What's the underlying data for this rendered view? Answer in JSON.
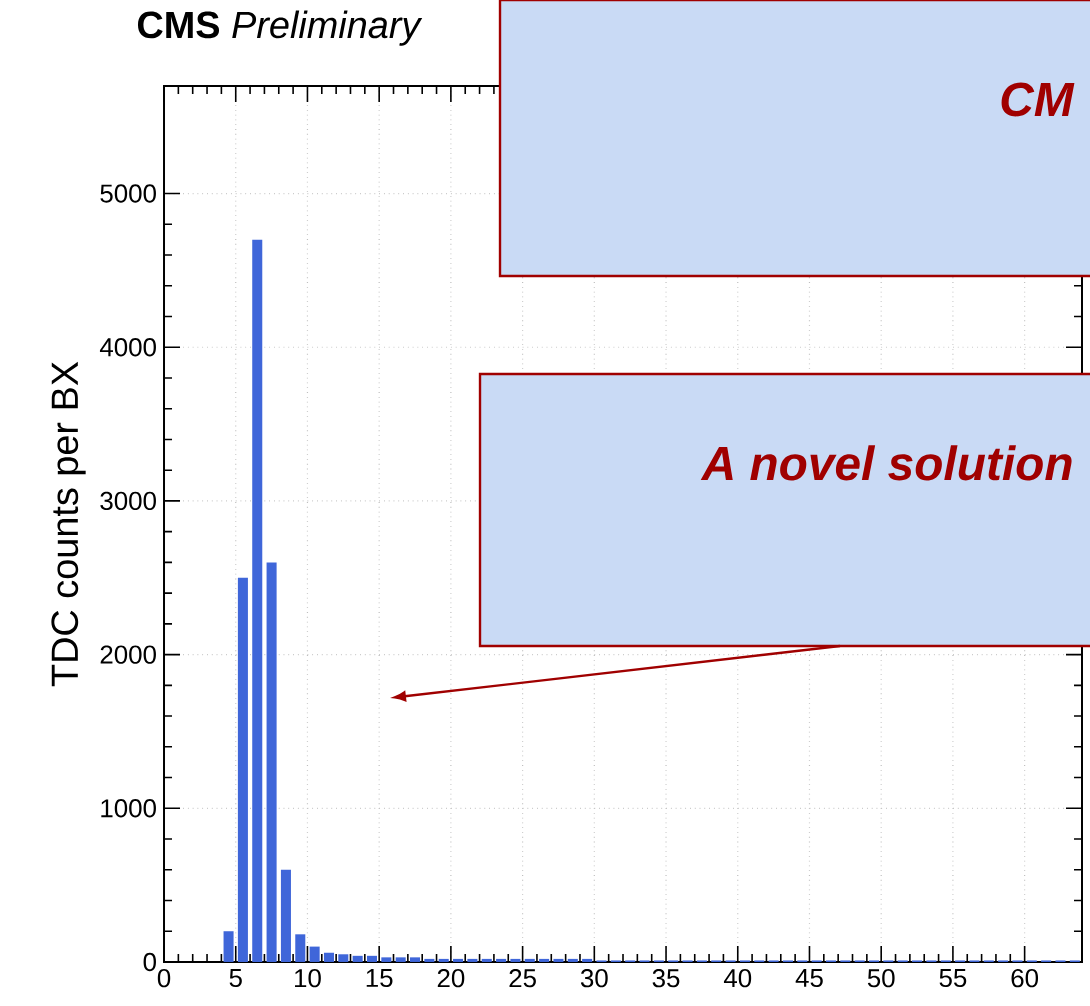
{
  "chart_data": {
    "type": "histogram",
    "title": "**CMS** *Preliminary*",
    "ylabel": "TDC counts per BX",
    "bins": [
      0,
      1,
      2,
      3,
      4,
      5,
      6,
      7,
      8,
      9,
      10,
      11,
      12,
      13,
      14,
      15,
      16,
      17,
      18,
      19,
      20,
      21,
      22,
      23,
      24,
      25,
      26,
      27,
      28,
      29,
      30,
      31,
      32,
      33,
      34,
      35,
      36,
      37,
      38,
      39,
      40,
      41,
      42,
      43,
      44,
      45,
      46,
      47,
      48,
      49,
      50,
      51,
      52,
      53,
      54,
      55,
      56,
      57,
      58,
      59,
      60,
      61,
      62,
      63,
      64
    ],
    "values": [
      0,
      0,
      0,
      0,
      200,
      2500,
      4700,
      2600,
      600,
      180,
      100,
      60,
      50,
      40,
      40,
      30,
      30,
      30,
      20,
      20,
      20,
      20,
      20,
      20,
      20,
      20,
      20,
      20,
      20,
      20,
      10,
      10,
      10,
      10,
      10,
      10,
      10,
      10,
      10,
      10,
      10,
      10,
      10,
      10,
      10,
      10,
      10,
      10,
      10,
      10,
      10,
      10,
      10,
      10,
      10,
      10,
      10,
      10,
      10,
      10,
      10,
      10,
      10,
      10
    ],
    "color": "#3f66d9",
    "xlim": [
      0,
      64
    ],
    "ylim": [
      0,
      5700
    ],
    "xticks": [
      0,
      5,
      10,
      15,
      20,
      25,
      30,
      35,
      40,
      45,
      50,
      55,
      60
    ],
    "yticks": [
      0,
      1000,
      2000,
      3000,
      4000,
      5000
    ],
    "grid": true,
    "annotations": [
      "CM",
      "A novel solution"
    ]
  }
}
